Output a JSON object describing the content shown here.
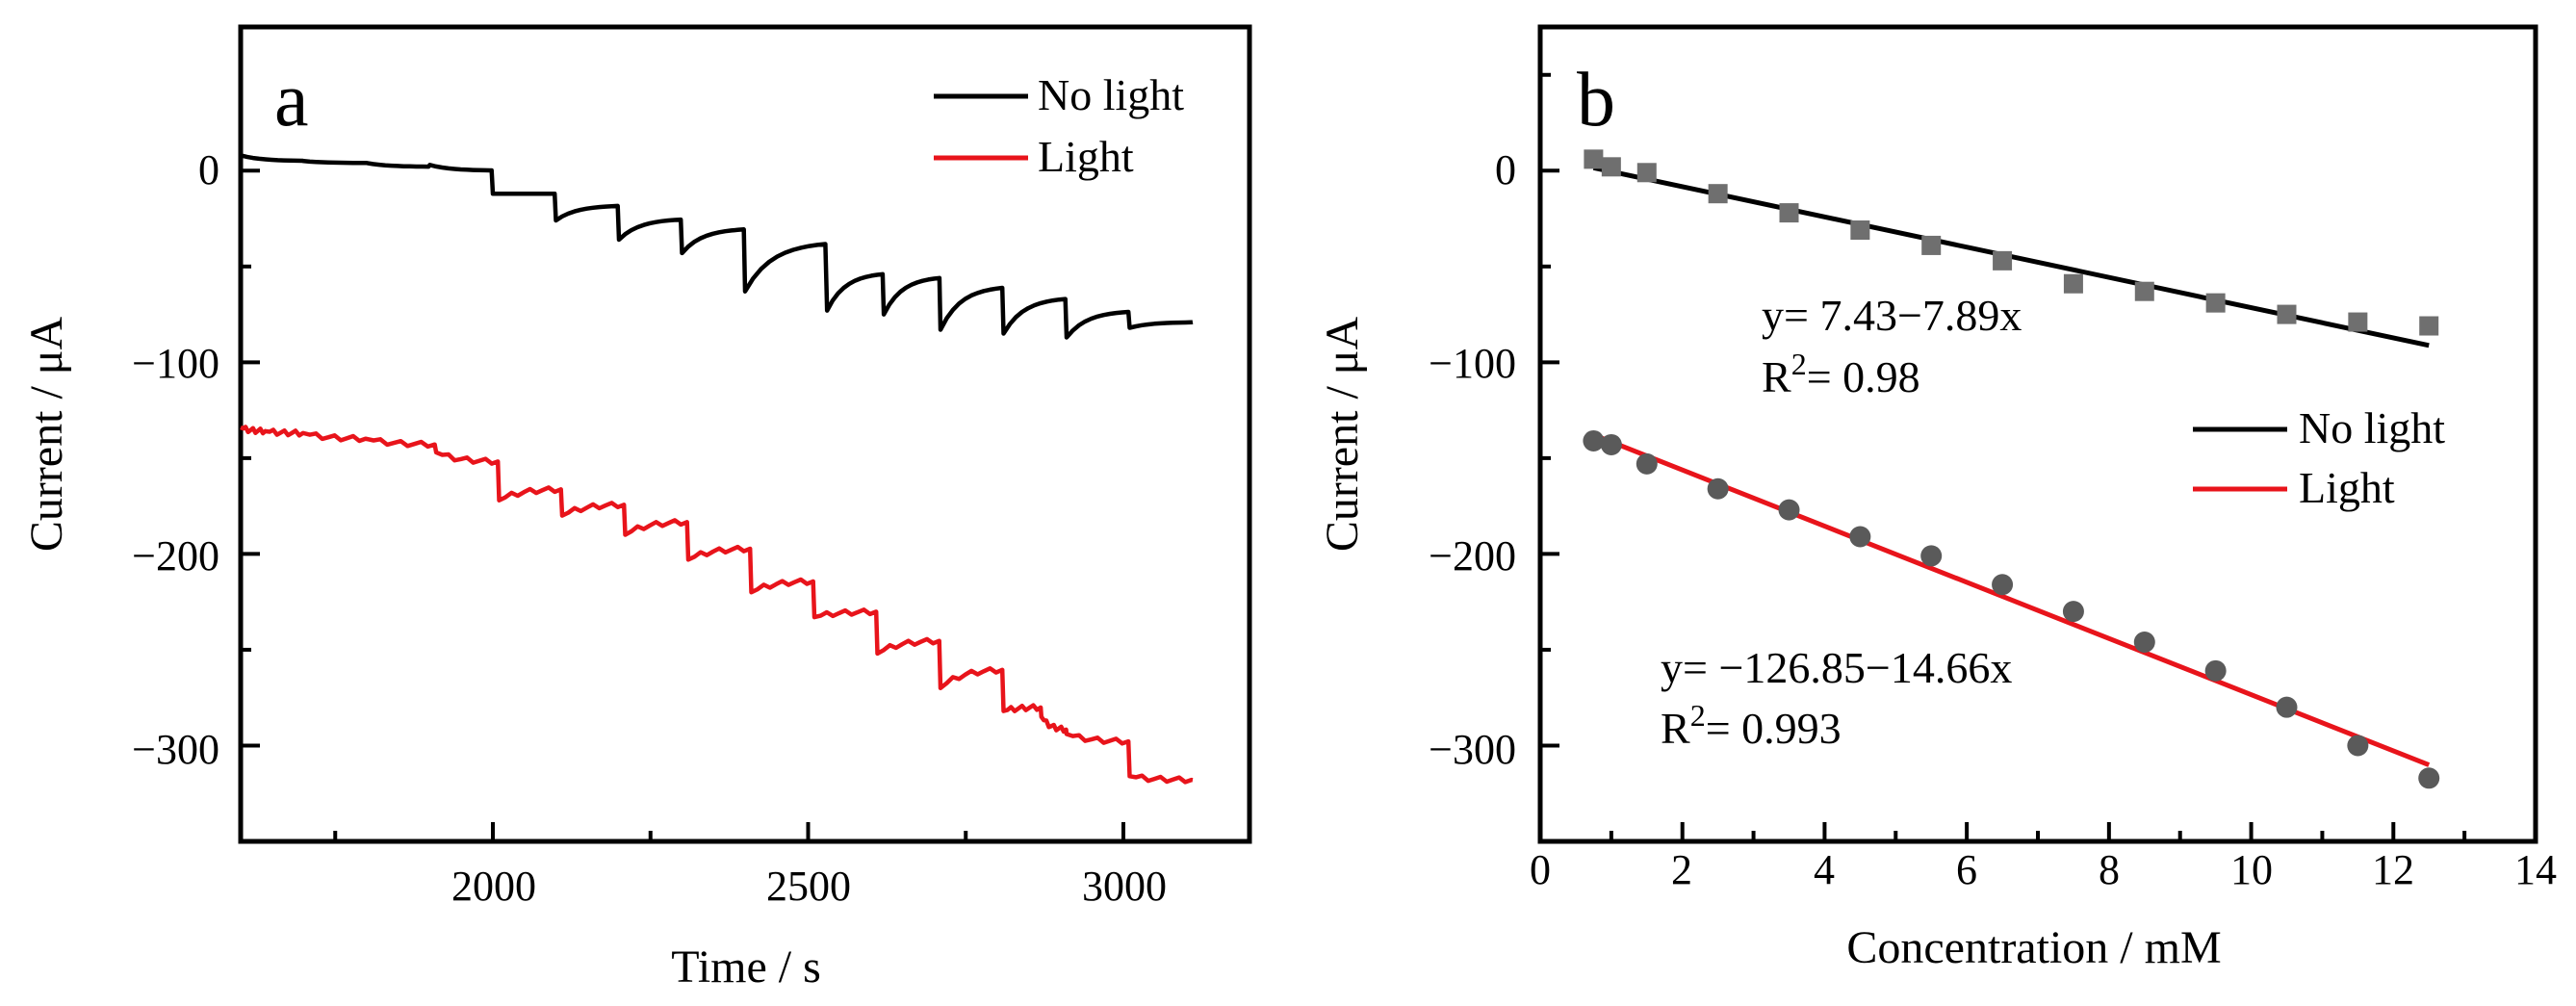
{
  "colors": {
    "no_light": "#000000",
    "light": "#e8141b",
    "marker_square": "#6f6f6f",
    "marker_circle": "#5a5a5a"
  },
  "chart_data": [
    {
      "panel": "a",
      "type": "line",
      "title": "",
      "xlabel": "Time / s",
      "ylabel": "Current / μA",
      "xlim": [
        1600,
        3200
      ],
      "ylim": [
        -350,
        75
      ],
      "xticks": [
        2000,
        2500,
        3000
      ],
      "xtick_labels": [
        "2000",
        "2500",
        "3000"
      ],
      "yticks": [
        0,
        -100,
        -200,
        -300
      ],
      "ytick_labels": [
        "0",
        "−100",
        "−200",
        "−300"
      ],
      "legend": [
        "No light",
        "Light"
      ],
      "legend_position": "top-right",
      "series": [
        {
          "name": "No light",
          "color": "#000000",
          "steps": [
            {
              "t": 1600,
              "y0": 8,
              "y1": 5
            },
            {
              "t": 1700,
              "y0": 5,
              "y1": 4
            },
            {
              "t": 1800,
              "y0": 4,
              "y1": 2
            },
            {
              "t": 1900,
              "y0": 3,
              "y1": 0
            },
            {
              "t": 2000,
              "y0": -12,
              "y1": -12
            },
            {
              "t": 2100,
              "y0": -26,
              "y1": -18
            },
            {
              "t": 2200,
              "y0": -36,
              "y1": -25
            },
            {
              "t": 2300,
              "y0": -43,
              "y1": -30
            },
            {
              "t": 2400,
              "y0": -63,
              "y1": -37
            },
            {
              "t": 2530,
              "y0": -73,
              "y1": -53
            },
            {
              "t": 2620,
              "y0": -75,
              "y1": -55
            },
            {
              "t": 2710,
              "y0": -83,
              "y1": -60
            },
            {
              "t": 2810,
              "y0": -85,
              "y1": -66
            },
            {
              "t": 2910,
              "y0": -87,
              "y1": -73
            },
            {
              "t": 3010,
              "y0": -82,
              "y1": -79
            },
            {
              "t": 3110,
              "y0": -79,
              "y1": -79
            }
          ]
        },
        {
          "name": "Light",
          "color": "#e8141b",
          "steps": [
            {
              "t": 1600,
              "y0": -134,
              "y1": -136
            },
            {
              "t": 1640,
              "y0": -136,
              "y1": -137
            },
            {
              "t": 1700,
              "y0": -137,
              "y1": -140
            },
            {
              "t": 1800,
              "y0": -140,
              "y1": -143
            },
            {
              "t": 1910,
              "y0": -147,
              "y1": -152
            },
            {
              "t": 2010,
              "y0": -172,
              "y1": -166
            },
            {
              "t": 2110,
              "y0": -180,
              "y1": -174
            },
            {
              "t": 2210,
              "y0": -190,
              "y1": -183
            },
            {
              "t": 2310,
              "y0": -203,
              "y1": -197
            },
            {
              "t": 2410,
              "y0": -220,
              "y1": -214
            },
            {
              "t": 2510,
              "y0": -233,
              "y1": -230
            },
            {
              "t": 2610,
              "y0": -252,
              "y1": -245
            },
            {
              "t": 2710,
              "y0": -270,
              "y1": -260
            },
            {
              "t": 2810,
              "y0": -282,
              "y1": -280
            },
            {
              "t": 2870,
              "y0": -285,
              "y1": -292
            },
            {
              "t": 2910,
              "y0": -294,
              "y1": -298
            },
            {
              "t": 3010,
              "y0": -316,
              "y1": -318
            },
            {
              "t": 3110,
              "y0": -318,
              "y1": -318
            }
          ]
        }
      ]
    },
    {
      "panel": "b",
      "type": "scatter",
      "title": "",
      "xlabel": "Concentration / mM",
      "ylabel": "Current / μA",
      "xlim": [
        0,
        14
      ],
      "ylim": [
        -350,
        75
      ],
      "xticks": [
        0,
        2,
        4,
        6,
        8,
        10,
        12,
        14
      ],
      "xtick_labels": [
        "0",
        "2",
        "4",
        "6",
        "8",
        "10",
        "12",
        "14"
      ],
      "yticks": [
        0,
        -100,
        -200,
        -300
      ],
      "ytick_labels": [
        "0",
        "−100",
        "−200",
        "−300"
      ],
      "legend": [
        "No light",
        "Light"
      ],
      "legend_position": "center-right",
      "series": [
        {
          "name": "No light",
          "marker": "square",
          "x": [
            0.75,
            1.0,
            1.5,
            2.5,
            3.5,
            4.5,
            5.5,
            6.5,
            7.5,
            8.5,
            9.5,
            10.5,
            11.5,
            12.5
          ],
          "y": [
            6,
            2,
            -1,
            -12,
            -22,
            -31,
            -39,
            -47,
            -59,
            -63,
            -69,
            -75,
            -79,
            -81
          ],
          "fit": {
            "intercept": 7.43,
            "slope": -7.89,
            "x_range": [
              0.75,
              12.5
            ],
            "color": "#000000"
          },
          "equation": "y= 7.43−7.89x",
          "r2_label": "R",
          "r2_value": "= 0.98"
        },
        {
          "name": "Light",
          "marker": "circle",
          "x": [
            0.75,
            1.0,
            1.5,
            2.5,
            3.5,
            4.5,
            5.5,
            6.5,
            7.5,
            8.5,
            9.5,
            10.5,
            11.5,
            12.5
          ],
          "y": [
            -141,
            -143,
            -153,
            -166,
            -177,
            -191,
            -201,
            -216,
            -230,
            -246,
            -261,
            -280,
            -300,
            -317
          ],
          "fit": {
            "intercept": -126.85,
            "slope": -14.66,
            "x_range": [
              0.75,
              12.5
            ],
            "color": "#e8141b"
          },
          "equation": "y= −126.85−14.66x",
          "r2_label": "R",
          "r2_value": "= 0.993"
        }
      ]
    }
  ]
}
